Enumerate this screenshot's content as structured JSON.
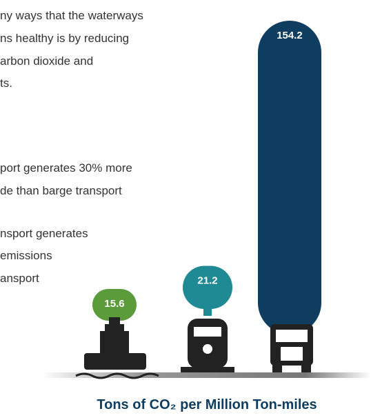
{
  "chart_data": {
    "type": "bar",
    "text_lines": [
      "ny ways that the waterways",
      "ns healthy is by reducing",
      "arbon dioxide and",
      "ts.",
      "port generates 30% more",
      "de than barge transport",
      "nsport generates",
      "emissions",
      "ansport"
    ],
    "categories": [
      null,
      null,
      null
    ],
    "values": [
      15.6,
      21.2,
      154.2
    ],
    "colors": [
      "#5c9b3a",
      "#1f8a94",
      "#0e3d5f"
    ],
    "caption": "Tons of CO₂ per Million Ton-miles"
  }
}
